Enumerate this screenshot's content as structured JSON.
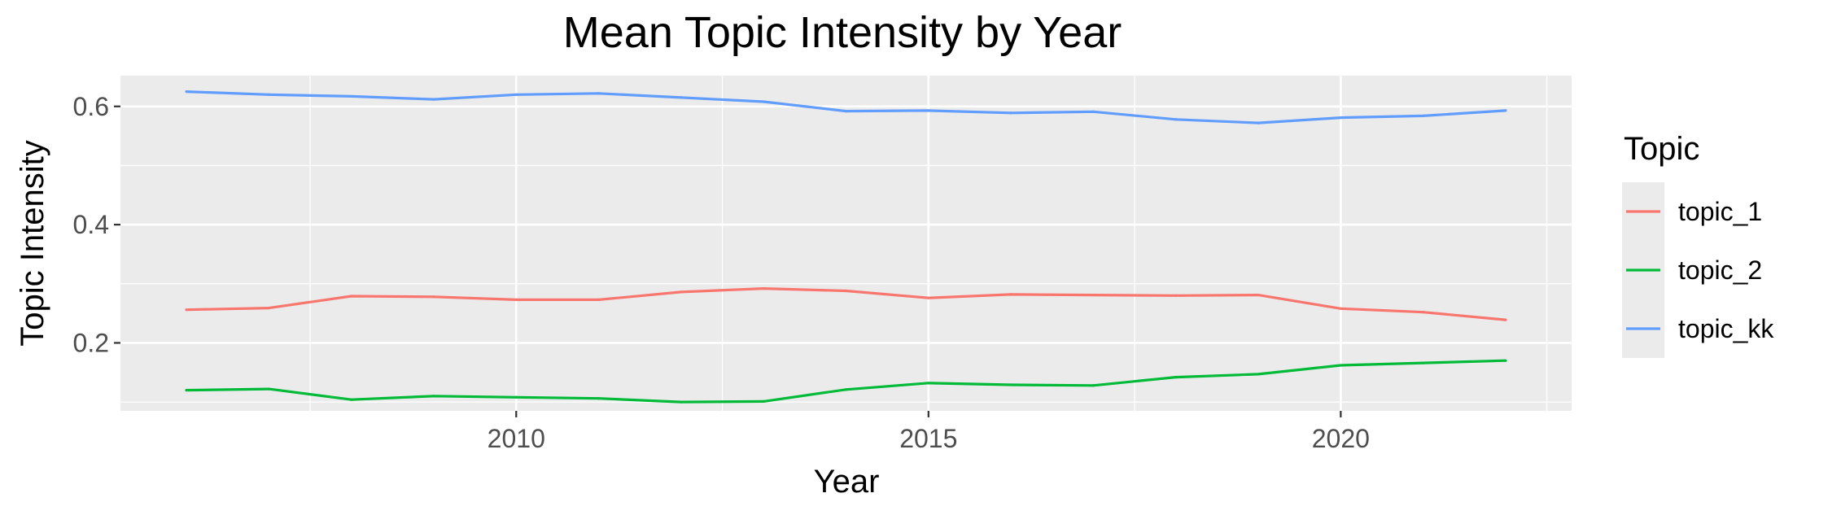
{
  "chart_data": {
    "type": "line",
    "title": "Mean Topic Intensity by Year",
    "xlabel": "Year",
    "ylabel": "Topic Intensity",
    "xlim": [
      2005.2,
      2022.8
    ],
    "ylim": [
      0.085,
      0.652
    ],
    "x_ticks": [
      2010,
      2015,
      2020
    ],
    "y_ticks": [
      0.2,
      0.4,
      0.6
    ],
    "x_tick_labels": [
      "2010",
      "2015",
      "2020"
    ],
    "y_tick_labels": [
      "0.2",
      "0.4",
      "0.6"
    ],
    "grid": true,
    "legend": {
      "title": "Topic",
      "position": "right"
    },
    "x": [
      2006,
      2007,
      2008,
      2009,
      2010,
      2011,
      2012,
      2013,
      2014,
      2015,
      2016,
      2017,
      2018,
      2019,
      2020,
      2021,
      2022
    ],
    "series": [
      {
        "name": "topic_1",
        "color": "#F8766D",
        "values": [
          0.256,
          0.259,
          0.279,
          0.278,
          0.273,
          0.273,
          0.286,
          0.292,
          0.288,
          0.276,
          0.282,
          0.281,
          0.28,
          0.281,
          0.258,
          0.252,
          0.239
        ]
      },
      {
        "name": "topic_2",
        "color": "#00BA38",
        "values": [
          0.12,
          0.122,
          0.104,
          0.11,
          0.108,
          0.106,
          0.1,
          0.101,
          0.121,
          0.132,
          0.129,
          0.128,
          0.142,
          0.147,
          0.162,
          0.166,
          0.17
        ]
      },
      {
        "name": "topic_kk",
        "color": "#619CFF",
        "values": [
          0.625,
          0.62,
          0.617,
          0.612,
          0.62,
          0.622,
          0.615,
          0.608,
          0.592,
          0.593,
          0.589,
          0.591,
          0.578,
          0.572,
          0.581,
          0.584,
          0.593
        ]
      }
    ]
  }
}
